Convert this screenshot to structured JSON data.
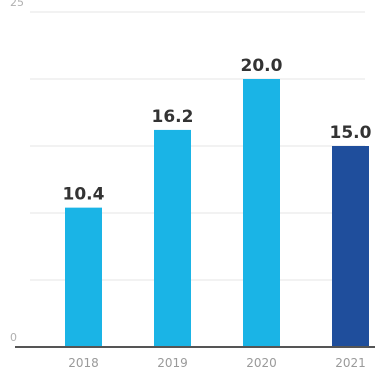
{
  "chart_data": {
    "type": "bar",
    "categories": [
      "2018",
      "2019",
      "2020",
      "2021"
    ],
    "values": [
      10.4,
      16.2,
      20.0,
      15.0
    ],
    "value_labels": [
      "10.4",
      "16.2",
      "20.0",
      "15.0"
    ],
    "ylim": [
      0,
      25
    ],
    "yticks": [
      {
        "value": 0,
        "label": "0"
      },
      {
        "value": 25,
        "label": "25"
      }
    ],
    "gridlines": [
      5,
      10,
      15,
      20,
      25
    ],
    "grid": true,
    "bar_colors": [
      "#1ab4e6",
      "#1ab4e6",
      "#1ab4e6",
      "#1f4e9c"
    ]
  }
}
